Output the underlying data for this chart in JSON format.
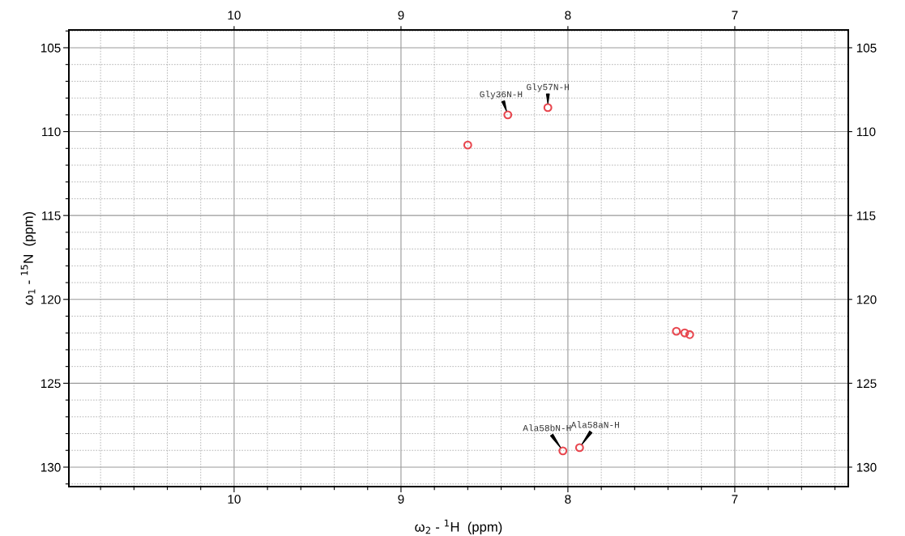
{
  "chart_data": {
    "type": "scatter",
    "xlabel": "ω$_{2}$ - $^{1}$H  (ppm)",
    "ylabel": "ω$_{1}$ - $^{15}$N  (ppm)",
    "x": [
      8.36,
      8.12,
      8.03,
      7.93,
      8.6,
      7.35,
      7.3,
      7.27
    ],
    "series": [
      {
        "color": "#e8474f",
        "values": [
          109.0,
          108.57,
          129.03,
          128.84,
          110.8,
          121.9,
          122.0,
          122.1
        ]
      }
    ],
    "marker": "circle",
    "grid": true,
    "legend": false,
    "xlim": [
      10.99,
      6.32
    ],
    "ylim": [
      131.16,
      103.94
    ],
    "xticks": [
      {
        "value": 10.8,
        "label": null
      },
      {
        "value": 10.6,
        "label": null
      },
      {
        "value": 10.4,
        "label": null
      },
      {
        "value": 10.2,
        "label": null
      },
      10,
      {
        "value": 9.8,
        "label": null
      },
      {
        "value": 9.6,
        "label": null
      },
      {
        "value": 9.4,
        "label": null
      },
      {
        "value": 9.2,
        "label": null
      },
      9,
      {
        "value": 8.8,
        "label": null
      },
      {
        "value": 8.6,
        "label": null
      },
      {
        "value": 8.4,
        "label": null
      },
      {
        "value": 8.2,
        "label": null
      },
      8,
      {
        "value": 7.8,
        "label": null
      },
      {
        "value": 7.6,
        "label": null
      },
      {
        "value": 7.4,
        "label": null
      },
      {
        "value": 7.2,
        "label": null
      },
      7,
      {
        "value": 6.8,
        "label": null
      },
      {
        "value": 6.6,
        "label": null
      },
      {
        "value": 6.4,
        "label": null
      }
    ],
    "x2lim": [
      10.99,
      6.32
    ],
    "x2ticks": [
      10,
      9,
      8,
      7
    ],
    "yticks": [
      {
        "value": 104,
        "label": null
      },
      105,
      {
        "value": 106,
        "label": null
      },
      {
        "value": 107,
        "label": null
      },
      {
        "value": 108,
        "label": null
      },
      {
        "value": 109,
        "label": null
      },
      110,
      {
        "value": 111,
        "label": null
      },
      {
        "value": 112,
        "label": null
      },
      {
        "value": 113,
        "label": null
      },
      {
        "value": 114,
        "label": null
      },
      115,
      {
        "value": 116,
        "label": null
      },
      {
        "value": 117,
        "label": null
      },
      {
        "value": 118,
        "label": null
      },
      {
        "value": 119,
        "label": null
      },
      120,
      {
        "value": 121,
        "label": null
      },
      {
        "value": 122,
        "label": null
      },
      {
        "value": 123,
        "label": null
      },
      {
        "value": 124,
        "label": null
      },
      125,
      {
        "value": 126,
        "label": null
      },
      {
        "value": 127,
        "label": null
      },
      {
        "value": 128,
        "label": null
      },
      {
        "value": 129,
        "label": null
      },
      130,
      {
        "value": 131,
        "label": null
      }
    ],
    "y2lim": [
      131.16,
      103.94
    ],
    "y2ticks": [
      105,
      110,
      115,
      120,
      125,
      130
    ],
    "annotations": [
      {
        "text": "Gly36N-H",
        "x": 8.36,
        "y": 109.0
      },
      {
        "text": "Gly57N-H",
        "x": 8.12,
        "y": 108.57
      },
      {
        "text": "Ala58bN-H",
        "x": 8.03,
        "y": 129.03
      },
      {
        "text": "Ala58aN-H",
        "x": 7.93,
        "y": 128.84
      }
    ]
  }
}
